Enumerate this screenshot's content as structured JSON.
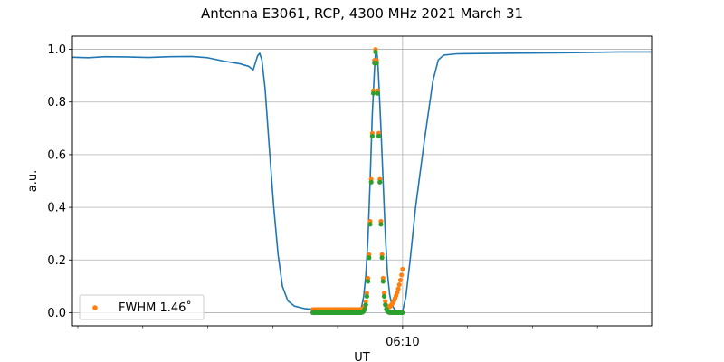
{
  "chart_data": {
    "type": "line",
    "title": "Antenna E3061, RCP, 4300 MHz 2021 March 31",
    "xlabel": "UT",
    "ylabel": "a.u.",
    "xlim": [
      "06:04:55",
      "06:13:50"
    ],
    "ylim": [
      -0.05,
      1.05
    ],
    "yticks": [
      0.0,
      0.2,
      0.4,
      0.6,
      0.8,
      1.0
    ],
    "ytick_labels": [
      "0.0",
      "0.2",
      "0.4",
      "0.6",
      "0.8",
      "1.0"
    ],
    "xticks_major": [
      "06:10:00"
    ],
    "xtick_labels": [
      "06:10"
    ],
    "grid": true,
    "legend": {
      "placement": "lower-left",
      "entries": [
        "FWHM 1.46$^\\circ$"
      ],
      "label_text": "FWHM 1.46˚"
    },
    "series": [
      {
        "kind": "line",
        "color": "#1f77b4",
        "points": [
          [
            "06:04:55",
            0.97
          ],
          [
            "06:05:10",
            0.968
          ],
          [
            "06:05:25",
            0.972
          ],
          [
            "06:05:45",
            0.971
          ],
          [
            "06:06:05",
            0.969
          ],
          [
            "06:06:25",
            0.972
          ],
          [
            "06:06:45",
            0.973
          ],
          [
            "06:07:00",
            0.968
          ],
          [
            "06:07:15",
            0.955
          ],
          [
            "06:07:30",
            0.945
          ],
          [
            "06:07:38",
            0.935
          ],
          [
            "06:07:42",
            0.922
          ],
          [
            "06:07:46",
            0.975
          ],
          [
            "06:07:48",
            0.985
          ],
          [
            "06:07:50",
            0.96
          ],
          [
            "06:07:53",
            0.85
          ],
          [
            "06:07:57",
            0.62
          ],
          [
            "06:08:01",
            0.4
          ],
          [
            "06:08:05",
            0.22
          ],
          [
            "06:08:09",
            0.1
          ],
          [
            "06:08:14",
            0.045
          ],
          [
            "06:08:20",
            0.025
          ],
          [
            "06:08:30",
            0.015
          ],
          [
            "06:08:40",
            0.012
          ],
          [
            "06:09:00",
            0.01
          ],
          [
            "06:09:05",
            0.007
          ],
          [
            "06:09:15",
            0.006
          ],
          [
            "06:09:20",
            0.008
          ],
          [
            "06:09:22",
            0.02
          ],
          [
            "06:09:24",
            0.06
          ],
          [
            "06:09:26",
            0.14
          ],
          [
            "06:09:28",
            0.28
          ],
          [
            "06:09:30",
            0.5
          ],
          [
            "06:09:32",
            0.75
          ],
          [
            "06:09:34",
            0.92
          ],
          [
            "06:09:35",
            0.985
          ],
          [
            "06:09:36",
            0.995
          ],
          [
            "06:09:37",
            0.96
          ],
          [
            "06:09:38",
            0.88
          ],
          [
            "06:09:40",
            0.7
          ],
          [
            "06:09:42",
            0.5
          ],
          [
            "06:09:44",
            0.3
          ],
          [
            "06:09:46",
            0.15
          ],
          [
            "06:09:48",
            0.07
          ],
          [
            "06:09:50",
            0.03
          ],
          [
            "06:09:53",
            0.01
          ],
          [
            "06:09:57",
            0.005
          ],
          [
            "06:10:00",
            0.006
          ],
          [
            "06:10:03",
            0.06
          ],
          [
            "06:10:07",
            0.2
          ],
          [
            "06:10:12",
            0.4
          ],
          [
            "06:10:20",
            0.65
          ],
          [
            "06:10:28",
            0.88
          ],
          [
            "06:10:33",
            0.96
          ],
          [
            "06:10:38",
            0.978
          ],
          [
            "06:10:50",
            0.983
          ],
          [
            "06:11:30",
            0.985
          ],
          [
            "06:12:30",
            0.987
          ],
          [
            "06:13:20",
            0.99
          ],
          [
            "06:13:50",
            0.99
          ]
        ]
      },
      {
        "kind": "scatter",
        "name": "FWHM 1.46$^\\circ$",
        "color": "#ff7f0e",
        "x_range": [
          "06:08:37",
          "06:10:00"
        ],
        "x_step_seconds": 1,
        "profile": "gaussian-plus-ramp",
        "peak": {
          "x": "06:09:35",
          "y": 1.0
        },
        "end_value": 0.165,
        "baseline": 0.012
      },
      {
        "kind": "scatter",
        "color": "#2ca02c",
        "x_range": [
          "06:08:37",
          "06:10:00"
        ],
        "x_step_seconds": 1,
        "profile": "gaussian",
        "peak": {
          "x": "06:09:35",
          "y": 0.99
        },
        "baseline": 0.0
      }
    ]
  }
}
